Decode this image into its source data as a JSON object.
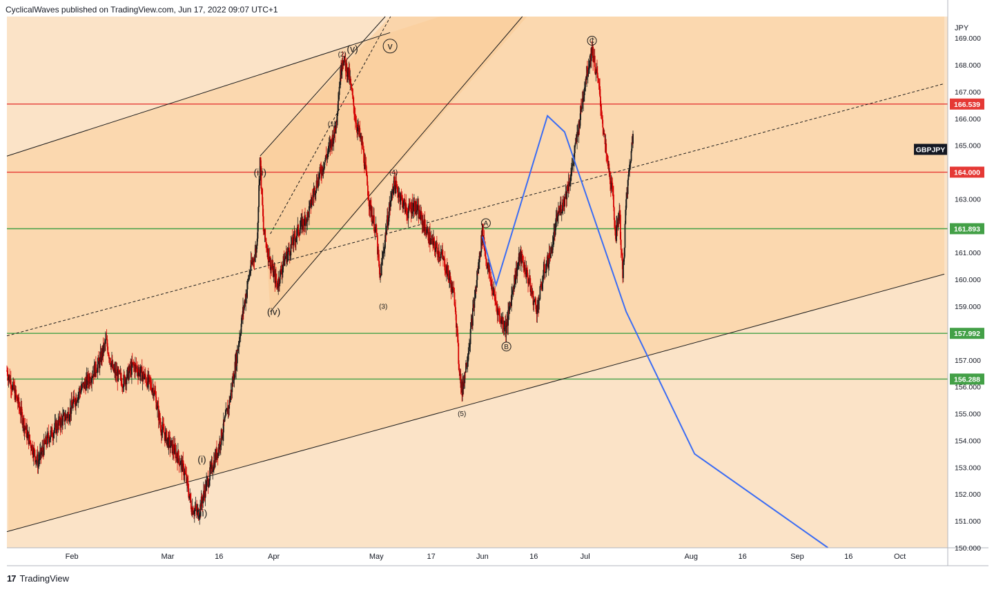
{
  "header": {
    "publisher_line": "CyclicalWaves published on TradingView.com, Jun 17, 2022 09:07 UTC+1"
  },
  "footer": {
    "brand": "TradingView",
    "logo_glyph": "17"
  },
  "colors": {
    "background": "#fbe3c7",
    "zone_light": "#fce2c4",
    "zone_mid": "#fbd7ae",
    "zone_dark": "#f9cb94",
    "candle_red": "#d40000",
    "candle_dark": "#1a1a1a",
    "forecast_blue": "#3a6cf4",
    "resistance_red": "#e53935",
    "support_green": "#43a047",
    "axis_text": "#131722"
  },
  "chart_data": {
    "type": "candlestick",
    "symbol": "GBPJPY",
    "currency_label": "JPY",
    "ylim": [
      150.0,
      169.8
    ],
    "y_ticks": [
      "169.000",
      "168.000",
      "167.000",
      "166.000",
      "165.000",
      "164.000",
      "163.000",
      "162.000",
      "161.000",
      "160.000",
      "159.000",
      "158.000",
      "157.000",
      "156.000",
      "155.000",
      "154.000",
      "153.000",
      "152.000",
      "151.000",
      "150.000"
    ],
    "x_start": "2022-01-13",
    "x_end": "2022-10-15",
    "x_ticks": [
      {
        "date": "2022-02-01",
        "label": "Feb"
      },
      {
        "date": "2022-03-01",
        "label": "Mar"
      },
      {
        "date": "2022-03-16",
        "label": "16"
      },
      {
        "date": "2022-04-01",
        "label": "Apr"
      },
      {
        "date": "2022-05-01",
        "label": "May"
      },
      {
        "date": "2022-05-17",
        "label": "17"
      },
      {
        "date": "2022-06-01",
        "label": "Jun"
      },
      {
        "date": "2022-06-16",
        "label": "16"
      },
      {
        "date": "2022-07-01",
        "label": "Jul"
      },
      {
        "date": "2022-08-01",
        "label": "Aug"
      },
      {
        "date": "2022-08-16",
        "label": "16"
      },
      {
        "date": "2022-09-01",
        "label": "Sep"
      },
      {
        "date": "2022-09-16",
        "label": "16"
      },
      {
        "date": "2022-10-01",
        "label": "Oct"
      }
    ],
    "price_path": [
      [
        "2022-01-13",
        156.6
      ],
      [
        "2022-01-16",
        155.5
      ],
      [
        "2022-01-19",
        154.2
      ],
      [
        "2022-01-22",
        153.2
      ],
      [
        "2022-01-25",
        154.1
      ],
      [
        "2022-01-28",
        154.6
      ],
      [
        "2022-01-31",
        155.0
      ],
      [
        "2022-02-03",
        155.8
      ],
      [
        "2022-02-06",
        156.3
      ],
      [
        "2022-02-09",
        156.9
      ],
      [
        "2022-02-11",
        157.7
      ],
      [
        "2022-02-13",
        156.6
      ],
      [
        "2022-02-16",
        156.2
      ],
      [
        "2022-02-19",
        156.8
      ],
      [
        "2022-02-22",
        156.4
      ],
      [
        "2022-02-25",
        155.9
      ],
      [
        "2022-02-27",
        154.5
      ],
      [
        "2022-03-01",
        154.0
      ],
      [
        "2022-03-04",
        153.4
      ],
      [
        "2022-03-06",
        152.8
      ],
      [
        "2022-03-08",
        151.5
      ],
      [
        "2022-03-10",
        151.3
      ],
      [
        "2022-03-12",
        152.2
      ],
      [
        "2022-03-14",
        153.0
      ],
      [
        "2022-03-16",
        153.8
      ],
      [
        "2022-03-19",
        155.4
      ],
      [
        "2022-03-21",
        157.0
      ],
      [
        "2022-03-23",
        158.8
      ],
      [
        "2022-03-25",
        160.3
      ],
      [
        "2022-03-27",
        161.2
      ],
      [
        "2022-03-28",
        164.5
      ],
      [
        "2022-03-29",
        161.8
      ],
      [
        "2022-03-31",
        160.6
      ],
      [
        "2022-04-02",
        159.8
      ],
      [
        "2022-04-04",
        160.7
      ],
      [
        "2022-04-06",
        161.2
      ],
      [
        "2022-04-08",
        161.8
      ],
      [
        "2022-04-11",
        162.4
      ],
      [
        "2022-04-13",
        163.4
      ],
      [
        "2022-04-15",
        164.1
      ],
      [
        "2022-04-17",
        164.8
      ],
      [
        "2022-04-19",
        165.6
      ],
      [
        "2022-04-20",
        167.0
      ],
      [
        "2022-04-21",
        168.3
      ],
      [
        "2022-04-23",
        167.6
      ],
      [
        "2022-04-25",
        165.9
      ],
      [
        "2022-04-27",
        164.9
      ],
      [
        "2022-04-29",
        162.8
      ],
      [
        "2022-05-01",
        161.7
      ],
      [
        "2022-05-02",
        160.0
      ],
      [
        "2022-05-04",
        162.0
      ],
      [
        "2022-05-06",
        163.6
      ],
      [
        "2022-05-08",
        163.1
      ],
      [
        "2022-05-10",
        162.5
      ],
      [
        "2022-05-12",
        162.8
      ],
      [
        "2022-05-14",
        162.3
      ],
      [
        "2022-05-17",
        161.4
      ],
      [
        "2022-05-20",
        160.9
      ],
      [
        "2022-05-22",
        160.2
      ],
      [
        "2022-05-24",
        159.2
      ],
      [
        "2022-05-25",
        157.0
      ],
      [
        "2022-05-26",
        155.8
      ],
      [
        "2022-05-28",
        157.5
      ],
      [
        "2022-05-30",
        159.6
      ],
      [
        "2022-06-01",
        161.8
      ],
      [
        "2022-06-02",
        160.8
      ],
      [
        "2022-06-04",
        159.6
      ],
      [
        "2022-06-06",
        158.6
      ],
      [
        "2022-06-08",
        158.2
      ],
      [
        "2022-06-10",
        159.8
      ],
      [
        "2022-06-12",
        160.9
      ],
      [
        "2022-06-14",
        160.2
      ],
      [
        "2022-06-16",
        159.2
      ],
      [
        "2022-06-17",
        158.9
      ],
      [
        "2022-06-19",
        160.3
      ],
      [
        "2022-06-21",
        161.0
      ],
      [
        "2022-06-23",
        162.4
      ],
      [
        "2022-06-25",
        163.0
      ],
      [
        "2022-06-27",
        164.0
      ],
      [
        "2022-06-29",
        165.6
      ],
      [
        "2022-07-01",
        167.4
      ],
      [
        "2022-07-03",
        168.6
      ],
      [
        "2022-07-05",
        167.2
      ],
      [
        "2022-07-07",
        164.8
      ],
      [
        "2022-07-09",
        163.2
      ],
      [
        "2022-07-10",
        161.6
      ],
      [
        "2022-07-11",
        162.6
      ],
      [
        "2022-07-12",
        160.0
      ],
      [
        "2022-07-13",
        162.9
      ],
      [
        "2022-07-14",
        164.2
      ],
      [
        "2022-07-15",
        165.4
      ]
    ],
    "candles_note_unused": "",
    "horizontal_levels": [
      {
        "price": 166.539,
        "label": "166.539",
        "color": "#e53935"
      },
      {
        "price": 164.0,
        "label": "164.000",
        "color": "#e53935"
      },
      {
        "price": 161.893,
        "label": "161.893",
        "color": "#43a047"
      },
      {
        "price": 157.992,
        "label": "157.992",
        "color": "#43a047"
      },
      {
        "price": 156.288,
        "label": "156.288",
        "color": "#43a047"
      }
    ],
    "main_channel": {
      "upper": [
        [
          "2022-01-13",
          164.6
        ],
        [
          "2022-04-24",
          168.7
        ],
        [
          "2022-05-05",
          169.2
        ]
      ],
      "lower": [
        [
          "2022-01-13",
          150.6
        ],
        [
          "2022-10-14",
          160.2
        ]
      ],
      "median_dashed": [
        [
          "2022-01-13",
          157.9
        ],
        [
          "2022-10-14",
          167.3
        ]
      ]
    },
    "inner_channel": {
      "upper": [
        [
          "2022-03-28",
          164.6
        ],
        [
          "2022-05-05",
          170.0
        ]
      ],
      "lower": [
        [
          "2022-03-31",
          158.8
        ],
        [
          "2022-06-14",
          170.0
        ]
      ],
      "median_dashed": [
        [
          "2022-03-31",
          161.7
        ],
        [
          "2022-05-06",
          170.0
        ]
      ]
    },
    "forecast_path": [
      [
        "2022-06-01",
        161.6
      ],
      [
        "2022-06-05",
        159.8
      ],
      [
        "2022-06-20",
        166.1
      ],
      [
        "2022-06-25",
        165.5
      ],
      [
        "2022-07-13",
        158.8
      ],
      [
        "2022-08-02",
        153.5
      ],
      [
        "2022-09-10",
        150.0
      ]
    ],
    "wave_labels": [
      {
        "date": "2022-03-28",
        "price": 164.0,
        "text": "(iii)",
        "circled": false,
        "size": "large"
      },
      {
        "date": "2022-04-01",
        "price": 158.8,
        "text": "(iv)",
        "circled": false,
        "size": "large"
      },
      {
        "date": "2022-04-24",
        "price": 168.6,
        "text": "(v)",
        "circled": false,
        "size": "large"
      },
      {
        "date": "2022-05-05",
        "price": 168.7,
        "text": "v",
        "circled": true,
        "size": "large"
      },
      {
        "date": "2022-03-11",
        "price": 153.3,
        "text": "(i)",
        "circled": false,
        "size": "large"
      },
      {
        "date": "2022-03-11",
        "price": 151.3,
        "text": "(ii)",
        "circled": false,
        "size": "large"
      },
      {
        "date": "2022-04-21",
        "price": 168.4,
        "text": "(2)",
        "circled": false,
        "size": "small"
      },
      {
        "date": "2022-04-18",
        "price": 165.8,
        "text": "(1)",
        "circled": false,
        "size": "small"
      },
      {
        "date": "2022-05-06",
        "price": 164.0,
        "text": "(4)",
        "circled": false,
        "size": "small"
      },
      {
        "date": "2022-05-03",
        "price": 159.0,
        "text": "(3)",
        "circled": false,
        "size": "small"
      },
      {
        "date": "2022-05-26",
        "price": 155.0,
        "text": "(5)",
        "circled": false,
        "size": "small"
      },
      {
        "date": "2022-06-02",
        "price": 162.1,
        "text": "A",
        "circled": true,
        "size": "small"
      },
      {
        "date": "2022-06-08",
        "price": 157.5,
        "text": "B",
        "circled": true,
        "size": "small"
      },
      {
        "date": "2022-07-03",
        "price": 168.9,
        "text": "C",
        "circled": true,
        "size": "small"
      }
    ]
  }
}
